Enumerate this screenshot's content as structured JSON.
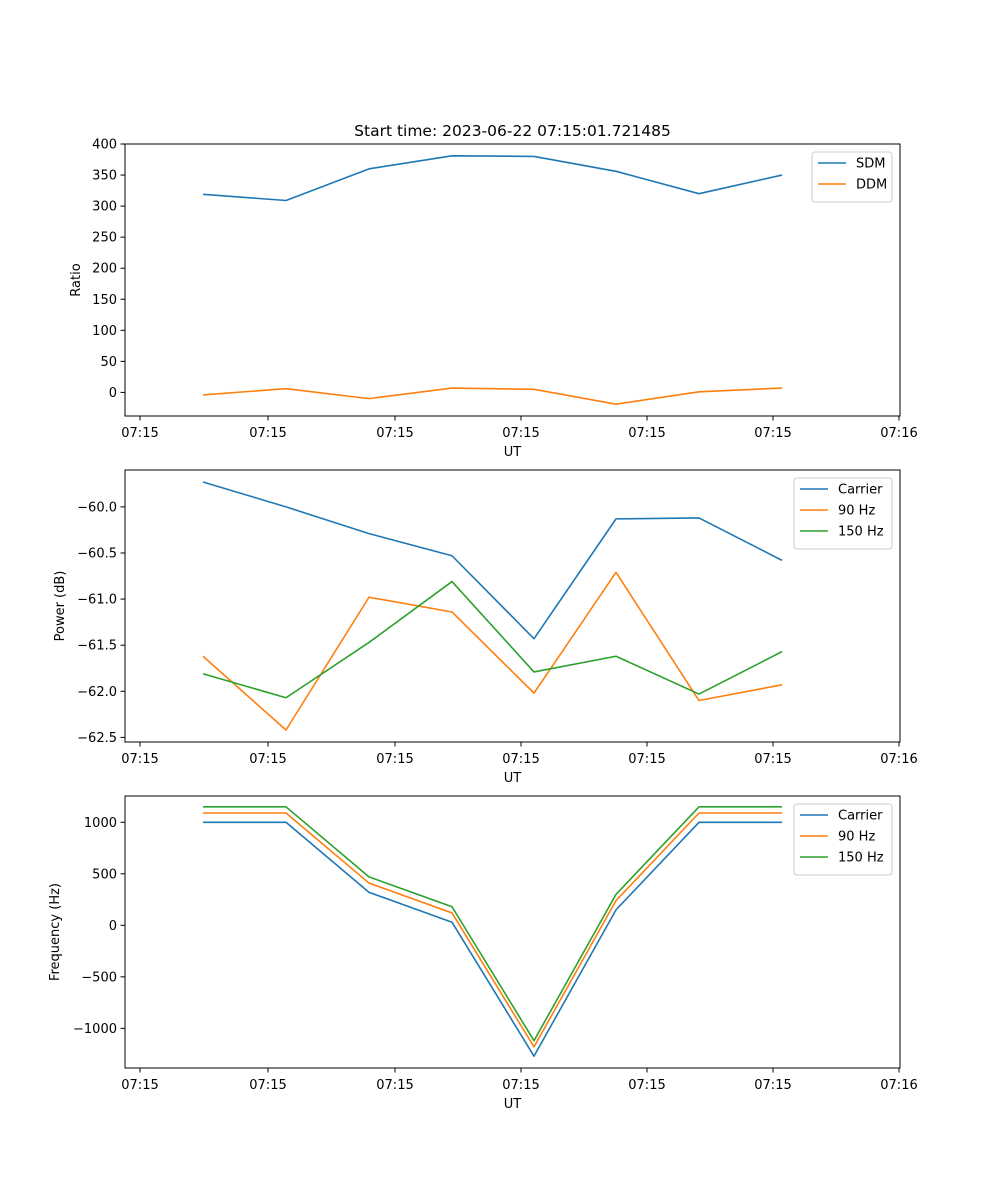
{
  "figure": {
    "title": "Start time: 2023-06-22 07:15:01.721485"
  },
  "chart_data": [
    {
      "type": "line",
      "title": "Start time: 2023-06-22 07:15:01.721485",
      "xlabel": "UT",
      "ylabel": "Ratio",
      "x_tick_labels": [
        "07:15",
        "07:15",
        "07:15",
        "07:15",
        "07:15",
        "07:15",
        "07:16"
      ],
      "y_ticks": [
        0,
        50,
        100,
        150,
        200,
        250,
        300,
        350,
        400
      ],
      "y_tick_labels": [
        "0",
        "50",
        "100",
        "150",
        "200",
        "250",
        "300",
        "350",
        "400"
      ],
      "ylim": [
        -38,
        400
      ],
      "legend": "top-right",
      "grid": false,
      "series": [
        {
          "name": "SDM",
          "color": "#1f77b4",
          "values": [
            319,
            309,
            360,
            381,
            380,
            356,
            320,
            350
          ]
        },
        {
          "name": "DDM",
          "color": "#ff7f0e",
          "values": [
            -4,
            6,
            -10,
            7,
            5,
            -19,
            1,
            7
          ]
        }
      ]
    },
    {
      "type": "line",
      "title": "",
      "xlabel": "UT",
      "ylabel": "Power (dB)",
      "x_tick_labels": [
        "07:15",
        "07:15",
        "07:15",
        "07:15",
        "07:15",
        "07:15",
        "07:16"
      ],
      "y_ticks": [
        -60.0,
        -60.5,
        -61.0,
        -61.5,
        -62.0,
        -62.5
      ],
      "y_tick_labels": [
        "−60.0",
        "−60.5",
        "−61.0",
        "−61.5",
        "−62.0",
        "−62.5"
      ],
      "ylim": [
        -62.55,
        -59.6
      ],
      "legend": "top-right",
      "grid": false,
      "series": [
        {
          "name": "Carrier",
          "color": "#1f77b4",
          "values": [
            -59.73,
            -60.0,
            -60.29,
            -60.53,
            -61.43,
            -60.13,
            -60.12,
            -60.58
          ]
        },
        {
          "name": "90 Hz",
          "color": "#ff7f0e",
          "values": [
            -61.62,
            -62.42,
            -60.98,
            -61.14,
            -62.02,
            -60.71,
            -62.1,
            -61.93
          ]
        },
        {
          "name": "150 Hz",
          "color": "#2ca02c",
          "values": [
            -61.81,
            -62.07,
            -61.47,
            -60.81,
            -61.79,
            -61.62,
            -62.03,
            -61.57
          ]
        }
      ]
    },
    {
      "type": "line",
      "title": "",
      "xlabel": "UT",
      "ylabel": "Frequency (Hz)",
      "x_tick_labels": [
        "07:15",
        "07:15",
        "07:15",
        "07:15",
        "07:15",
        "07:15",
        "07:16"
      ],
      "y_ticks": [
        1000,
        500,
        0,
        -500,
        -1000
      ],
      "y_tick_labels": [
        "1000",
        "500",
        "0",
        "−500",
        "−1000"
      ],
      "ylim": [
        -1385,
        1255
      ],
      "legend": "top-right",
      "grid": false,
      "series": [
        {
          "name": "Carrier",
          "color": "#1f77b4",
          "values": [
            1000,
            1000,
            320,
            30,
            -1270,
            150,
            1000,
            1000
          ]
        },
        {
          "name": "90 Hz",
          "color": "#ff7f0e",
          "values": [
            1090,
            1090,
            410,
            120,
            -1180,
            240,
            1090,
            1090
          ]
        },
        {
          "name": "150 Hz",
          "color": "#2ca02c",
          "values": [
            1150,
            1150,
            470,
            180,
            -1120,
            300,
            1150,
            1150
          ]
        }
      ]
    }
  ]
}
